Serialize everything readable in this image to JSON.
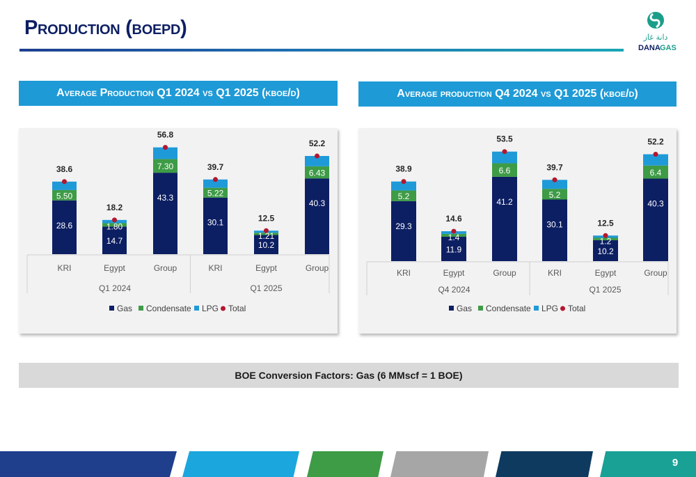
{
  "page": {
    "title": "Production (boepd)",
    "page_number": "9",
    "conversion_note": "BOE Conversion Factors: Gas (6 MMscf = 1 BOE)"
  },
  "logo": {
    "arabic": "دانة غاز",
    "name_part1": "DANA",
    "name_part2": "GAS"
  },
  "colors": {
    "gas": "#0d1f63",
    "condensate": "#3e9b46",
    "lpg": "#1f9ad8",
    "total": "#b4162f",
    "banner": "#1e9ad6",
    "title": "#0d1f63",
    "footer": [
      "#1f3f8d",
      "#1ba7dd",
      "#3e9b46",
      "#a6a6a6",
      "#0f3a5f",
      "#19a196"
    ]
  },
  "chart_data": [
    {
      "type": "bar",
      "stacked": true,
      "title": "Average Production Q1 2024 vs Q1 2025 (kboe/d)",
      "groups": [
        {
          "label": "Q1 2024",
          "categories": [
            "KRI",
            "Egypt",
            "Group"
          ]
        },
        {
          "label": "Q1 2025",
          "categories": [
            "KRI",
            "Egypt",
            "Group"
          ]
        }
      ],
      "categories": [
        "KRI",
        "Egypt",
        "Group",
        "KRI",
        "Egypt",
        "Group"
      ],
      "series": [
        {
          "name": "Gas",
          "values": [
            28.6,
            14.7,
            43.3,
            30.1,
            10.2,
            40.3
          ],
          "labels": [
            "28.6",
            "14.7",
            "43.3",
            "30.1",
            "10.2",
            "40.3"
          ]
        },
        {
          "name": "Condensate",
          "values": [
            5.5,
            1.8,
            7.3,
            5.22,
            1.21,
            6.43
          ],
          "labels": [
            "5.50",
            "1.80",
            "7.30",
            "5.22",
            "1.21",
            "6.43"
          ]
        },
        {
          "name": "LPG",
          "values": [
            4.5,
            1.7,
            6.2,
            4.4,
            1.1,
            5.5
          ]
        },
        {
          "name": "Total",
          "values": [
            38.6,
            18.2,
            56.8,
            39.7,
            12.5,
            52.2
          ],
          "labels": [
            "38.6",
            "18.2",
            "56.8",
            "39.7",
            "12.5",
            "52.2"
          ]
        }
      ],
      "legend": [
        "Gas",
        "Condensate",
        "LPG",
        "Total"
      ],
      "legend_position": "bottom",
      "ylim": [
        0,
        60
      ],
      "grid": false
    },
    {
      "type": "bar",
      "stacked": true,
      "title": "Average production Q4 2024 vs Q1 2025 (kboe/d)",
      "groups": [
        {
          "label": "Q4 2024",
          "categories": [
            "KRI",
            "Egypt",
            "Group"
          ]
        },
        {
          "label": "Q1 2025",
          "categories": [
            "KRI",
            "Egypt",
            "Group"
          ]
        }
      ],
      "categories": [
        "KRI",
        "Egypt",
        "Group",
        "KRI",
        "Egypt",
        "Group"
      ],
      "series": [
        {
          "name": "Gas",
          "values": [
            29.3,
            11.9,
            41.2,
            30.1,
            10.2,
            40.3
          ],
          "labels": [
            "29.3",
            "11.9",
            "41.2",
            "30.1",
            "10.2",
            "40.3"
          ]
        },
        {
          "name": "Condensate",
          "values": [
            5.2,
            1.4,
            6.6,
            5.2,
            1.2,
            6.4
          ],
          "labels": [
            "5.2",
            "1.4",
            "6.6",
            "5.2",
            "1.2",
            "6.4"
          ]
        },
        {
          "name": "LPG",
          "values": [
            4.4,
            1.3,
            5.7,
            4.4,
            1.1,
            5.5
          ]
        },
        {
          "name": "Total",
          "values": [
            38.9,
            14.6,
            53.5,
            39.7,
            12.5,
            52.2
          ],
          "labels": [
            "38.9",
            "14.6",
            "53.5",
            "39.7",
            "12.5",
            "52.2"
          ]
        }
      ],
      "legend": [
        "Gas",
        "Condensate",
        "LPG",
        "Total"
      ],
      "legend_position": "bottom",
      "ylim": [
        0,
        60
      ],
      "grid": false
    }
  ]
}
